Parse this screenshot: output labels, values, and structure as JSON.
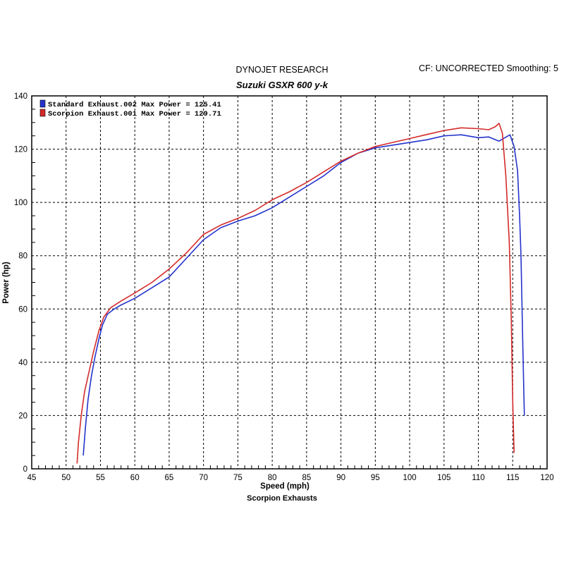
{
  "header": {
    "left": "DYNOJET RESEARCH",
    "right": "CF: UNCORRECTED  Smoothing: 5"
  },
  "footer": "Scorpion Exhausts",
  "colors": {
    "standard": "#2433cc",
    "scorpion": "#d42a2a",
    "grid": "#000000",
    "background": "#ffffff"
  },
  "chart_data": {
    "type": "line",
    "title": "Suzuki GSXR 600 y-k",
    "xlabel": "Speed (mph)",
    "ylabel": "Power (hp)",
    "xlim": [
      45,
      120
    ],
    "ylim": [
      0,
      140
    ],
    "x_ticks": [
      "45",
      "50",
      "55",
      "60",
      "65",
      "70",
      "75",
      "80",
      "85",
      "90",
      "95",
      "100",
      "105",
      "110",
      "115",
      "120"
    ],
    "y_ticks": [
      "0",
      "20",
      "40",
      "60",
      "80",
      "100",
      "120",
      "140"
    ],
    "grid": true,
    "legend_position": "top-left",
    "series": [
      {
        "name": "Standard Exhaust.002 Max Power = 125.41",
        "color_key": "standard",
        "points": [
          [
            52.5,
            5
          ],
          [
            52.8,
            15
          ],
          [
            53.2,
            26
          ],
          [
            53.7,
            35
          ],
          [
            54.2,
            42
          ],
          [
            54.8,
            49
          ],
          [
            55.3,
            54
          ],
          [
            56.0,
            58
          ],
          [
            57.0,
            60
          ],
          [
            58.0,
            61.5
          ],
          [
            60.0,
            64
          ],
          [
            62.5,
            68
          ],
          [
            65.0,
            72
          ],
          [
            67.5,
            79
          ],
          [
            70.0,
            86
          ],
          [
            72.5,
            90.5
          ],
          [
            75.0,
            93
          ],
          [
            77.5,
            95
          ],
          [
            80.0,
            98
          ],
          [
            82.5,
            102
          ],
          [
            85.0,
            106
          ],
          [
            87.5,
            110
          ],
          [
            90.0,
            115
          ],
          [
            92.5,
            118.5
          ],
          [
            95.0,
            120.5
          ],
          [
            97.5,
            121.5
          ],
          [
            100.0,
            122.5
          ],
          [
            102.5,
            123.5
          ],
          [
            105.0,
            125
          ],
          [
            107.5,
            125.4
          ],
          [
            110.0,
            124.3
          ],
          [
            111.5,
            124.6
          ],
          [
            113.0,
            123
          ],
          [
            114.0,
            124.5
          ],
          [
            114.6,
            125.4
          ],
          [
            115.2,
            121
          ],
          [
            115.7,
            112
          ],
          [
            116.0,
            95
          ],
          [
            116.2,
            80
          ],
          [
            116.4,
            55
          ],
          [
            116.6,
            30
          ],
          [
            116.7,
            20
          ]
        ]
      },
      {
        "name": "Scorpion Exhaust.001 Max Power = 129.71",
        "color_key": "scorpion",
        "points": [
          [
            51.6,
            2
          ],
          [
            51.8,
            10
          ],
          [
            52.2,
            20
          ],
          [
            52.7,
            29
          ],
          [
            53.3,
            36
          ],
          [
            54.0,
            44
          ],
          [
            54.8,
            52
          ],
          [
            55.5,
            57
          ],
          [
            56.5,
            60.5
          ],
          [
            58.0,
            63
          ],
          [
            60.0,
            66
          ],
          [
            62.5,
            70
          ],
          [
            65.0,
            75
          ],
          [
            67.5,
            81
          ],
          [
            70.0,
            88
          ],
          [
            72.5,
            91.5
          ],
          [
            75.0,
            94
          ],
          [
            77.5,
            97
          ],
          [
            80.0,
            101
          ],
          [
            82.5,
            104
          ],
          [
            85.0,
            107.5
          ],
          [
            87.5,
            111.5
          ],
          [
            90.0,
            115.5
          ],
          [
            92.5,
            118.5
          ],
          [
            95.0,
            121
          ],
          [
            97.5,
            122.5
          ],
          [
            100.0,
            124
          ],
          [
            102.5,
            125.5
          ],
          [
            105.0,
            127
          ],
          [
            107.5,
            128
          ],
          [
            110.0,
            127.7
          ],
          [
            111.5,
            127.3
          ],
          [
            112.5,
            128.5
          ],
          [
            113.0,
            129.7
          ],
          [
            113.5,
            126
          ],
          [
            114.0,
            110
          ],
          [
            114.5,
            85
          ],
          [
            114.8,
            55
          ],
          [
            115.0,
            25
          ],
          [
            115.2,
            6
          ]
        ]
      }
    ]
  }
}
